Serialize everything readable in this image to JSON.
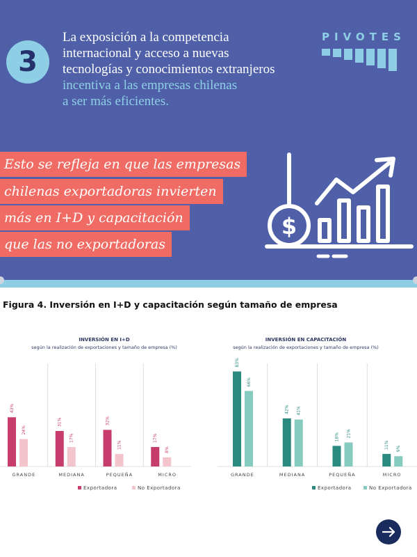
{
  "banner": {
    "step_number": "3",
    "intro_white": [
      "La exposición a la competencia",
      "internacional y acceso a nuevas",
      "tecnologías y conocimientos extranjeros"
    ],
    "intro_blue": [
      "incentiva  a las empresas chilenas",
      "a ser más eficientes."
    ],
    "brand": "PIVOTES",
    "highlight_lines": [
      "Esto se refleja en que las empresas",
      "chilenas exportadoras invierten",
      "más en I+D y capacitación",
      "que las no exportadoras"
    ],
    "illustration_icons": [
      "dollar-coin-icon",
      "growth-bar-chart-icon",
      "arrow-up-icon"
    ]
  },
  "figure_title": "Figura 4. Inversión en I+D y capacitación según tamaño de empresa",
  "colors": {
    "banner_bg": "#4f60a8",
    "light_blue": "#8ecfe6",
    "highlight": "#ef6b63",
    "exportadora_left": "#c63d6d",
    "no_exportadora_left": "#f3c4cc",
    "exportadora_right": "#2a8a7f",
    "no_exportadora_right": "#85cbbf",
    "chart_title": "#2d3760",
    "next_button": "#1a2b5e"
  },
  "chart_data": [
    {
      "type": "bar",
      "title": "INVERSIÓN EN I+D",
      "subtitle": "según la realización de exportaciones y tamaño de empresa (%)",
      "categories": [
        "GRANDE",
        "MEDIANA",
        "PEQUEÑA",
        "MICRO"
      ],
      "series": [
        {
          "name": "Exportadora",
          "values": [
            43,
            31,
            32,
            17
          ],
          "labels": [
            "43%",
            "31%",
            "32%",
            "17%"
          ],
          "color": "#c63d6d"
        },
        {
          "name": "No Exportadora",
          "values": [
            24,
            17,
            11,
            8
          ],
          "labels": [
            "24%",
            "17%",
            "11%",
            "8%"
          ],
          "color": "#f3c4cc"
        }
      ],
      "ylim": [
        0,
        90
      ],
      "legend": "bottom",
      "grid": false
    },
    {
      "type": "bar",
      "title": "INVERSIÓN EN CAPACITACIÓN",
      "subtitle": "según la realización de exportaciones y tamaño de empresa (%)",
      "categories": [
        "GRANDE",
        "MEDIANA",
        "PEQUEÑA",
        "MICRO"
      ],
      "series": [
        {
          "name": "Exportadora",
          "values": [
            83,
            42,
            18,
            11
          ],
          "labels": [
            "83%",
            "42%",
            "18%",
            "11%"
          ],
          "color": "#2a8a7f"
        },
        {
          "name": "No Exportadora",
          "values": [
            66,
            41,
            21,
            9
          ],
          "labels": [
            "66%",
            "41%",
            "21%",
            "9%"
          ],
          "color": "#85cbbf"
        }
      ],
      "ylim": [
        0,
        90
      ],
      "legend": "bottom",
      "grid": false
    }
  ]
}
